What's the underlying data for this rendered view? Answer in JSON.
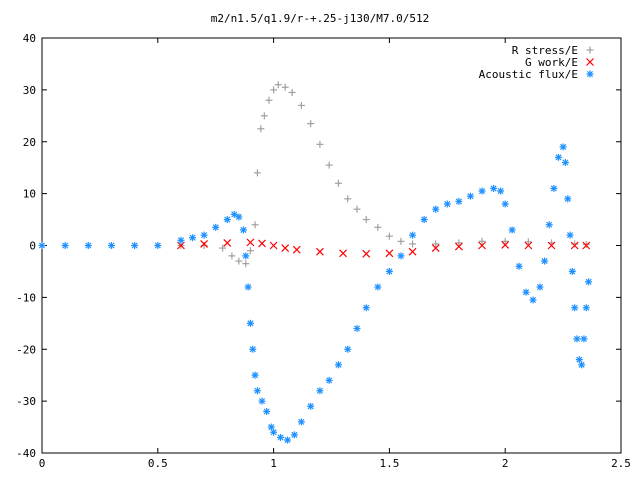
{
  "chart_data": {
    "type": "scatter",
    "title": "m2/n1.5/q1.9/r-+.25-j130/M7.0/512",
    "xlabel": "",
    "ylabel": "",
    "xlim": [
      0,
      2.5
    ],
    "ylim": [
      -40,
      40
    ],
    "x_ticks": [
      "0",
      "0.5",
      "1",
      "1.5",
      "2",
      "2.5"
    ],
    "y_ticks": [
      "40",
      "30",
      "20",
      "10",
      "0",
      "-10",
      "-20",
      "-30",
      "-40"
    ],
    "x_tick_values": [
      0,
      0.5,
      1,
      1.5,
      2,
      2.5
    ],
    "y_tick_values": [
      40,
      30,
      20,
      10,
      0,
      -10,
      -20,
      -30,
      -40
    ],
    "grid": false,
    "legend_position": "top-right",
    "series": [
      {
        "name": "R stress/E",
        "marker": "plus",
        "color": "#a0a0a0",
        "points": [
          [
            0.6,
            0
          ],
          [
            0.7,
            0
          ],
          [
            0.78,
            -0.5
          ],
          [
            0.82,
            -2
          ],
          [
            0.85,
            -3
          ],
          [
            0.88,
            -3.5
          ],
          [
            0.9,
            -1
          ],
          [
            0.92,
            4
          ],
          [
            0.93,
            14
          ],
          [
            0.945,
            22.5
          ],
          [
            0.96,
            25
          ],
          [
            0.98,
            28
          ],
          [
            1.0,
            30
          ],
          [
            1.02,
            31
          ],
          [
            1.05,
            30.5
          ],
          [
            1.08,
            29.5
          ],
          [
            1.12,
            27
          ],
          [
            1.16,
            23.5
          ],
          [
            1.2,
            19.5
          ],
          [
            1.24,
            15.5
          ],
          [
            1.28,
            12
          ],
          [
            1.32,
            9
          ],
          [
            1.36,
            7
          ],
          [
            1.4,
            5
          ],
          [
            1.45,
            3.5
          ],
          [
            1.5,
            1.8
          ],
          [
            1.55,
            0.8
          ],
          [
            1.6,
            0.3
          ],
          [
            1.7,
            0.3
          ],
          [
            1.8,
            0.5
          ],
          [
            1.9,
            0.8
          ],
          [
            2.0,
            0.8
          ],
          [
            2.1,
            0.7
          ],
          [
            2.2,
            0.5
          ],
          [
            2.3,
            0.3
          ],
          [
            2.35,
            0.2
          ]
        ]
      },
      {
        "name": "G work/E",
        "marker": "cross",
        "color": "#ff0000",
        "points": [
          [
            0.6,
            0
          ],
          [
            0.7,
            0.3
          ],
          [
            0.8,
            0.5
          ],
          [
            0.9,
            0.6
          ],
          [
            0.95,
            0.4
          ],
          [
            1.0,
            0
          ],
          [
            1.05,
            -0.5
          ],
          [
            1.1,
            -0.8
          ],
          [
            1.2,
            -1.2
          ],
          [
            1.3,
            -1.5
          ],
          [
            1.4,
            -1.6
          ],
          [
            1.5,
            -1.5
          ],
          [
            1.6,
            -1.2
          ],
          [
            1.7,
            -0.5
          ],
          [
            1.8,
            -0.2
          ],
          [
            1.9,
            0
          ],
          [
            2.0,
            0.1
          ],
          [
            2.1,
            0
          ],
          [
            2.2,
            0
          ],
          [
            2.3,
            0
          ],
          [
            2.35,
            0
          ]
        ]
      },
      {
        "name": "Acoustic flux/E",
        "marker": "star",
        "color": "#1e90ff",
        "points": [
          [
            0.0,
            0
          ],
          [
            0.1,
            0
          ],
          [
            0.2,
            0
          ],
          [
            0.3,
            0
          ],
          [
            0.4,
            0
          ],
          [
            0.5,
            0
          ],
          [
            0.6,
            1
          ],
          [
            0.65,
            1.5
          ],
          [
            0.7,
            2
          ],
          [
            0.75,
            3.5
          ],
          [
            0.8,
            5
          ],
          [
            0.83,
            6
          ],
          [
            0.85,
            5.5
          ],
          [
            0.87,
            3
          ],
          [
            0.88,
            -2
          ],
          [
            0.89,
            -8
          ],
          [
            0.9,
            -15
          ],
          [
            0.91,
            -20
          ],
          [
            0.92,
            -25
          ],
          [
            0.93,
            -28
          ],
          [
            0.95,
            -30
          ],
          [
            0.97,
            -32
          ],
          [
            0.99,
            -35
          ],
          [
            1.0,
            -36
          ],
          [
            1.03,
            -37
          ],
          [
            1.06,
            -37.5
          ],
          [
            1.09,
            -36.5
          ],
          [
            1.12,
            -34
          ],
          [
            1.16,
            -31
          ],
          [
            1.2,
            -28
          ],
          [
            1.24,
            -26
          ],
          [
            1.28,
            -23
          ],
          [
            1.32,
            -20
          ],
          [
            1.36,
            -16
          ],
          [
            1.4,
            -12
          ],
          [
            1.45,
            -8
          ],
          [
            1.5,
            -5
          ],
          [
            1.55,
            -2
          ],
          [
            1.6,
            2
          ],
          [
            1.65,
            5
          ],
          [
            1.7,
            7
          ],
          [
            1.75,
            8
          ],
          [
            1.8,
            8.5
          ],
          [
            1.85,
            9.5
          ],
          [
            1.9,
            10.5
          ],
          [
            1.95,
            11
          ],
          [
            1.98,
            10.5
          ],
          [
            2.0,
            8
          ],
          [
            2.03,
            3
          ],
          [
            2.06,
            -4
          ],
          [
            2.09,
            -9
          ],
          [
            2.12,
            -10.5
          ],
          [
            2.15,
            -8
          ],
          [
            2.17,
            -3
          ],
          [
            2.19,
            4
          ],
          [
            2.21,
            11
          ],
          [
            2.23,
            17
          ],
          [
            2.25,
            19
          ],
          [
            2.26,
            16
          ],
          [
            2.27,
            9
          ],
          [
            2.28,
            2
          ],
          [
            2.29,
            -5
          ],
          [
            2.3,
            -12
          ],
          [
            2.31,
            -18
          ],
          [
            2.32,
            -22
          ],
          [
            2.33,
            -23
          ],
          [
            2.34,
            -18
          ],
          [
            2.35,
            -12
          ],
          [
            2.36,
            -7
          ]
        ]
      }
    ]
  }
}
